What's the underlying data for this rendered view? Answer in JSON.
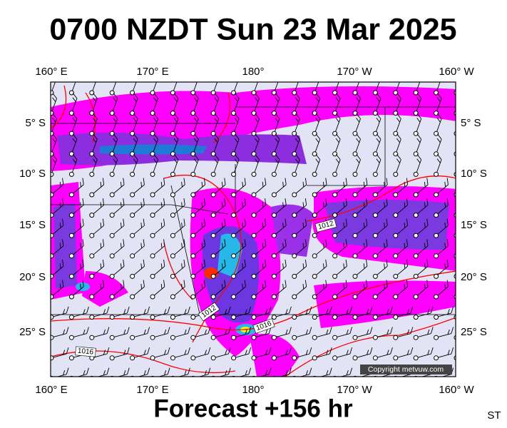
{
  "header": {
    "title": "0700 NZDT Sun 23 Mar 2025"
  },
  "map": {
    "lon_labels": [
      "160° E",
      "170° E",
      "180°",
      "170° W",
      "160° W"
    ],
    "lat_labels": [
      "5° S",
      "10° S",
      "15° S",
      "20° S",
      "25° S"
    ],
    "isobar_labels": [
      "1012",
      "1012",
      "1016",
      "1016"
    ],
    "copyright": "Copyright metvuw.com"
  },
  "footer": {
    "forecast": "Forecast +156 hr",
    "code": "ST"
  }
}
